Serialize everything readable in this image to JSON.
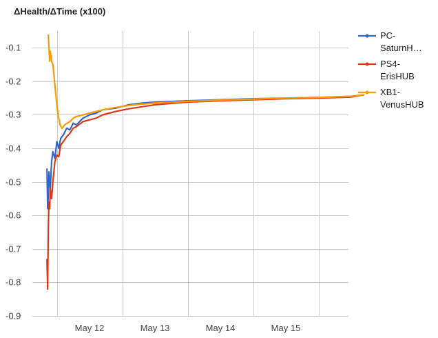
{
  "chart_data": {
    "type": "line",
    "title": "ΔHealth/ΔTime (x100)",
    "xlabel": "",
    "ylabel": "",
    "ylim": [
      -0.9,
      -0.05
    ],
    "grid": true,
    "legend_position": "right",
    "y_ticks": [
      "-0.1",
      "-0.2",
      "-0.3",
      "-0.4",
      "-0.5",
      "-0.6",
      "-0.7",
      "-0.8",
      "-0.9"
    ],
    "x_ticks": [
      {
        "label": "May 12",
        "day": 12
      },
      {
        "label": "May 13",
        "day": 13
      },
      {
        "label": "May 14",
        "day": 14
      },
      {
        "label": "May 15",
        "day": 15
      }
    ],
    "x_range_day": [
      11.35,
      16.2
    ],
    "series": [
      {
        "name": "PC-SaturnHUB",
        "legend_lines": [
          "PC-",
          "SaturnH…"
        ],
        "color": "#3366cc",
        "x": [
          11.35,
          11.36,
          11.37,
          11.38,
          11.4,
          11.42,
          11.44,
          11.47,
          11.5,
          11.53,
          11.56,
          11.6,
          11.65,
          11.7,
          11.75,
          11.8,
          11.9,
          12.0,
          12.1,
          12.2,
          12.4,
          12.6,
          12.8,
          13.0,
          13.5,
          14.0,
          14.5,
          15.0,
          15.5,
          16.0,
          16.2
        ],
        "values": [
          -0.46,
          -0.58,
          -0.54,
          -0.47,
          -0.52,
          -0.44,
          -0.41,
          -0.43,
          -0.38,
          -0.4,
          -0.37,
          -0.36,
          -0.34,
          -0.345,
          -0.325,
          -0.33,
          -0.31,
          -0.3,
          -0.295,
          -0.285,
          -0.28,
          -0.27,
          -0.265,
          -0.262,
          -0.258,
          -0.255,
          -0.252,
          -0.25,
          -0.248,
          -0.245,
          -0.24
        ]
      },
      {
        "name": "PS4-ErisHUB",
        "legend_lines": [
          "PS4-",
          "ErisHUB"
        ],
        "color": "#dc3912",
        "x": [
          11.35,
          11.36,
          11.37,
          11.38,
          11.39,
          11.4,
          11.42,
          11.44,
          11.47,
          11.5,
          11.53,
          11.56,
          11.6,
          11.65,
          11.7,
          11.75,
          11.8,
          11.9,
          12.0,
          12.1,
          12.2,
          12.4,
          12.6,
          12.8,
          13.0,
          13.5,
          14.0,
          14.5,
          15.0,
          15.5,
          16.0,
          16.2
        ],
        "values": [
          -0.73,
          -0.82,
          -0.64,
          -0.56,
          -0.58,
          -0.52,
          -0.55,
          -0.5,
          -0.44,
          -0.42,
          -0.425,
          -0.39,
          -0.38,
          -0.365,
          -0.355,
          -0.34,
          -0.335,
          -0.32,
          -0.315,
          -0.31,
          -0.3,
          -0.29,
          -0.282,
          -0.276,
          -0.27,
          -0.262,
          -0.258,
          -0.255,
          -0.252,
          -0.25,
          -0.247,
          -0.24
        ]
      },
      {
        "name": "XB1-VenusHUB",
        "legend_lines": [
          "XB1-",
          "VenusHUB"
        ],
        "color": "#ff9900",
        "x": [
          11.37,
          11.38,
          11.39,
          11.4,
          11.42,
          11.44,
          11.46,
          11.48,
          11.5,
          11.52,
          11.55,
          11.58,
          11.62,
          11.66,
          11.7,
          11.75,
          11.8,
          11.9,
          12.0,
          12.1,
          12.2,
          12.4,
          12.6,
          12.8,
          13.0,
          13.5,
          14.0,
          14.5,
          15.0,
          15.5,
          16.0,
          16.2
        ],
        "values": [
          -0.06,
          -0.1,
          -0.14,
          -0.11,
          -0.14,
          -0.15,
          -0.19,
          -0.23,
          -0.27,
          -0.3,
          -0.33,
          -0.34,
          -0.33,
          -0.325,
          -0.32,
          -0.31,
          -0.305,
          -0.3,
          -0.295,
          -0.29,
          -0.285,
          -0.278,
          -0.272,
          -0.268,
          -0.265,
          -0.26,
          -0.256,
          -0.253,
          -0.25,
          -0.248,
          -0.245,
          -0.24
        ]
      }
    ]
  }
}
